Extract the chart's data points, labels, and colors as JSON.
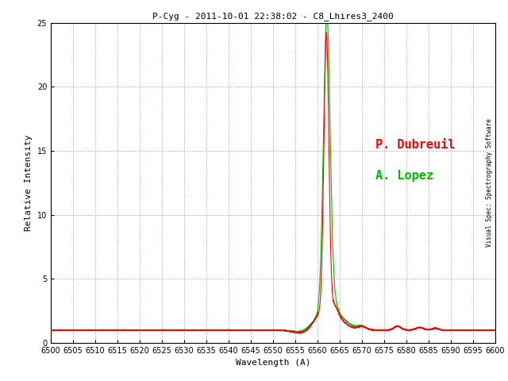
{
  "title": "P-Cyg - 2011-10-01 22:38:02 - C8_Lhires3_2400",
  "xlabel": "Wavelength (A)",
  "ylabel": "Relative Intensity",
  "xmin": 6500,
  "xmax": 6600,
  "ymin": 0,
  "ymax": 25,
  "label_dubreuil": "P. Dubreuil",
  "label_lopez": "A. Lopez",
  "color_dubreuil": "#FF0000",
  "color_lopez": "#00BB00",
  "rotated_text": "Visual Spec: Spectrography Software",
  "bg_color": "#FFFFFF",
  "grid_color": "#999999"
}
